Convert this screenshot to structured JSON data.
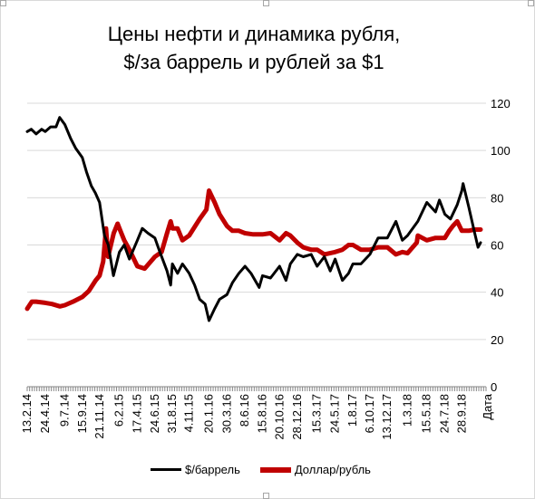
{
  "title_line1": "Цены нефти и динамика рубля,",
  "title_line2": "$/за баррель и рублей за  $1",
  "chart_data": {
    "type": "line",
    "title": "Цены нефти и динамика рубля, $/за баррель и рублей за  $1",
    "xlabel": "Дата",
    "ylabel": "",
    "ylim": [
      0,
      120
    ],
    "y_ticks": [
      0,
      20,
      40,
      60,
      80,
      100,
      120
    ],
    "y_axis_side": "right",
    "grid": true,
    "legend_position": "bottom",
    "x_date_range": [
      "2014-02-13",
      "2018-12-31"
    ],
    "x_ticks": [
      {
        "label": "13.2.14",
        "date": "2014-02-13"
      },
      {
        "label": "24.4.14",
        "date": "2014-04-24"
      },
      {
        "label": "9.7.14",
        "date": "2014-07-09"
      },
      {
        "label": "15.9.14",
        "date": "2014-09-15"
      },
      {
        "label": "21.11.14",
        "date": "2014-11-21"
      },
      {
        "label": "6.2.15",
        "date": "2015-02-06"
      },
      {
        "label": "17.4.15",
        "date": "2015-04-17"
      },
      {
        "label": "24.6.15",
        "date": "2015-06-24"
      },
      {
        "label": "31.8.15",
        "date": "2015-08-31"
      },
      {
        "label": "4.11.15",
        "date": "2015-11-04"
      },
      {
        "label": "20.1.16",
        "date": "2016-01-20"
      },
      {
        "label": "30.3.16",
        "date": "2016-03-30"
      },
      {
        "label": "8.6.16",
        "date": "2016-06-08"
      },
      {
        "label": "15.8.16",
        "date": "2016-08-15"
      },
      {
        "label": "20.10.16",
        "date": "2016-10-20"
      },
      {
        "label": "28.12.16",
        "date": "2016-12-28"
      },
      {
        "label": "15.3.17",
        "date": "2017-03-15"
      },
      {
        "label": "24.5.17",
        "date": "2017-05-24"
      },
      {
        "label": "1.8.17",
        "date": "2017-08-01"
      },
      {
        "label": "6.10.17",
        "date": "2017-10-06"
      },
      {
        "label": "13.12.17",
        "date": "2017-12-13"
      },
      {
        "label": "1.3.18",
        "date": "2018-03-01"
      },
      {
        "label": "15.5.18",
        "date": "2018-05-15"
      },
      {
        "label": "24.7.18",
        "date": "2018-07-24"
      },
      {
        "label": "28.9.18",
        "date": "2018-09-28"
      }
    ],
    "series": [
      {
        "name": "$/баррель",
        "color": "#000000",
        "points": [
          [
            "2014-02-13",
            108
          ],
          [
            "2014-03-01",
            109
          ],
          [
            "2014-03-20",
            107
          ],
          [
            "2014-04-10",
            109
          ],
          [
            "2014-04-24",
            108
          ],
          [
            "2014-05-15",
            110
          ],
          [
            "2014-06-05",
            110
          ],
          [
            "2014-06-19",
            114
          ],
          [
            "2014-07-09",
            111
          ],
          [
            "2014-08-01",
            105
          ],
          [
            "2014-08-20",
            101
          ],
          [
            "2014-09-15",
            97
          ],
          [
            "2014-10-01",
            91
          ],
          [
            "2014-10-20",
            85
          ],
          [
            "2014-11-05",
            82
          ],
          [
            "2014-11-21",
            78
          ],
          [
            "2014-12-10",
            64
          ],
          [
            "2014-12-25",
            60
          ],
          [
            "2015-01-14",
            47
          ],
          [
            "2015-02-06",
            57
          ],
          [
            "2015-02-25",
            60
          ],
          [
            "2015-03-17",
            54
          ],
          [
            "2015-04-17",
            62
          ],
          [
            "2015-05-06",
            67
          ],
          [
            "2015-05-28",
            65
          ],
          [
            "2015-06-24",
            63
          ],
          [
            "2015-07-10",
            58
          ],
          [
            "2015-08-10",
            49
          ],
          [
            "2015-08-24",
            43
          ],
          [
            "2015-08-31",
            52
          ],
          [
            "2015-09-20",
            48
          ],
          [
            "2015-10-09",
            52
          ],
          [
            "2015-11-04",
            48
          ],
          [
            "2015-11-25",
            43
          ],
          [
            "2015-12-15",
            37
          ],
          [
            "2016-01-05",
            35
          ],
          [
            "2016-01-20",
            28
          ],
          [
            "2016-02-11",
            33
          ],
          [
            "2016-03-01",
            37
          ],
          [
            "2016-03-30",
            39
          ],
          [
            "2016-04-20",
            44
          ],
          [
            "2016-05-15",
            48
          ],
          [
            "2016-06-08",
            51
          ],
          [
            "2016-07-01",
            48
          ],
          [
            "2016-08-02",
            42
          ],
          [
            "2016-08-15",
            47
          ],
          [
            "2016-09-15",
            46
          ],
          [
            "2016-10-20",
            51
          ],
          [
            "2016-11-14",
            45
          ],
          [
            "2016-12-01",
            52
          ],
          [
            "2016-12-28",
            56
          ],
          [
            "2017-01-20",
            55
          ],
          [
            "2017-02-20",
            56
          ],
          [
            "2017-03-15",
            51
          ],
          [
            "2017-04-12",
            55
          ],
          [
            "2017-05-05",
            49
          ],
          [
            "2017-05-24",
            54
          ],
          [
            "2017-06-21",
            45
          ],
          [
            "2017-07-15",
            48
          ],
          [
            "2017-08-01",
            52
          ],
          [
            "2017-09-01",
            52
          ],
          [
            "2017-10-06",
            56
          ],
          [
            "2017-11-07",
            63
          ],
          [
            "2017-12-13",
            63
          ],
          [
            "2018-01-15",
            70
          ],
          [
            "2018-02-09",
            62
          ],
          [
            "2018-03-01",
            64
          ],
          [
            "2018-04-10",
            70
          ],
          [
            "2018-05-15",
            78
          ],
          [
            "2018-06-18",
            74
          ],
          [
            "2018-07-03",
            79
          ],
          [
            "2018-07-24",
            73
          ],
          [
            "2018-08-15",
            71
          ],
          [
            "2018-09-10",
            77
          ],
          [
            "2018-09-28",
            83
          ],
          [
            "2018-10-03",
            86
          ],
          [
            "2018-10-25",
            76
          ],
          [
            "2018-11-15",
            66
          ],
          [
            "2018-11-30",
            59
          ],
          [
            "2018-12-10",
            61
          ]
        ]
      },
      {
        "name": "Доллар/рубль",
        "color": "#c00000",
        "points": [
          [
            "2014-02-13",
            33
          ],
          [
            "2014-03-03",
            36
          ],
          [
            "2014-03-20",
            36
          ],
          [
            "2014-04-24",
            35.5
          ],
          [
            "2014-05-20",
            35
          ],
          [
            "2014-06-20",
            34
          ],
          [
            "2014-07-09",
            34.5
          ],
          [
            "2014-08-10",
            36
          ],
          [
            "2014-09-15",
            38
          ],
          [
            "2014-10-10",
            40.5
          ],
          [
            "2014-11-06",
            45
          ],
          [
            "2014-11-21",
            47
          ],
          [
            "2014-12-05",
            53
          ],
          [
            "2014-12-16",
            67
          ],
          [
            "2014-12-24",
            55
          ],
          [
            "2015-01-15",
            65
          ],
          [
            "2015-01-30",
            69
          ],
          [
            "2015-02-06",
            67
          ],
          [
            "2015-02-25",
            62
          ],
          [
            "2015-03-17",
            58
          ],
          [
            "2015-04-17",
            51
          ],
          [
            "2015-05-15",
            50
          ],
          [
            "2015-06-24",
            55
          ],
          [
            "2015-07-20",
            57
          ],
          [
            "2015-08-10",
            65
          ],
          [
            "2015-08-24",
            70
          ],
          [
            "2015-08-31",
            67
          ],
          [
            "2015-09-20",
            67
          ],
          [
            "2015-10-09",
            62
          ],
          [
            "2015-11-04",
            64
          ],
          [
            "2015-12-15",
            71
          ],
          [
            "2016-01-10",
            75
          ],
          [
            "2016-01-20",
            83
          ],
          [
            "2016-02-11",
            78
          ],
          [
            "2016-03-01",
            73
          ],
          [
            "2016-03-30",
            68
          ],
          [
            "2016-04-20",
            66
          ],
          [
            "2016-05-15",
            66
          ],
          [
            "2016-06-08",
            65
          ],
          [
            "2016-07-10",
            64.5
          ],
          [
            "2016-08-15",
            64.5
          ],
          [
            "2016-09-15",
            65
          ],
          [
            "2016-10-20",
            62
          ],
          [
            "2016-11-14",
            65
          ],
          [
            "2016-12-01",
            64
          ],
          [
            "2016-12-28",
            61
          ],
          [
            "2017-01-20",
            59
          ],
          [
            "2017-02-20",
            58
          ],
          [
            "2017-03-15",
            58
          ],
          [
            "2017-04-12",
            56
          ],
          [
            "2017-05-24",
            57
          ],
          [
            "2017-06-21",
            58
          ],
          [
            "2017-07-15",
            60
          ],
          [
            "2017-08-01",
            60
          ],
          [
            "2017-09-01",
            58
          ],
          [
            "2017-10-06",
            58
          ],
          [
            "2017-11-07",
            59
          ],
          [
            "2017-12-13",
            59
          ],
          [
            "2018-01-15",
            56
          ],
          [
            "2018-02-09",
            57
          ],
          [
            "2018-03-01",
            56.5
          ],
          [
            "2018-04-06",
            61
          ],
          [
            "2018-04-10",
            64
          ],
          [
            "2018-05-15",
            62
          ],
          [
            "2018-06-18",
            63
          ],
          [
            "2018-07-24",
            63
          ],
          [
            "2018-08-10",
            66
          ],
          [
            "2018-08-24",
            68
          ],
          [
            "2018-09-10",
            70
          ],
          [
            "2018-09-28",
            66
          ],
          [
            "2018-10-25",
            66
          ],
          [
            "2018-11-15",
            66.5
          ],
          [
            "2018-12-10",
            66.5
          ]
        ]
      }
    ]
  }
}
